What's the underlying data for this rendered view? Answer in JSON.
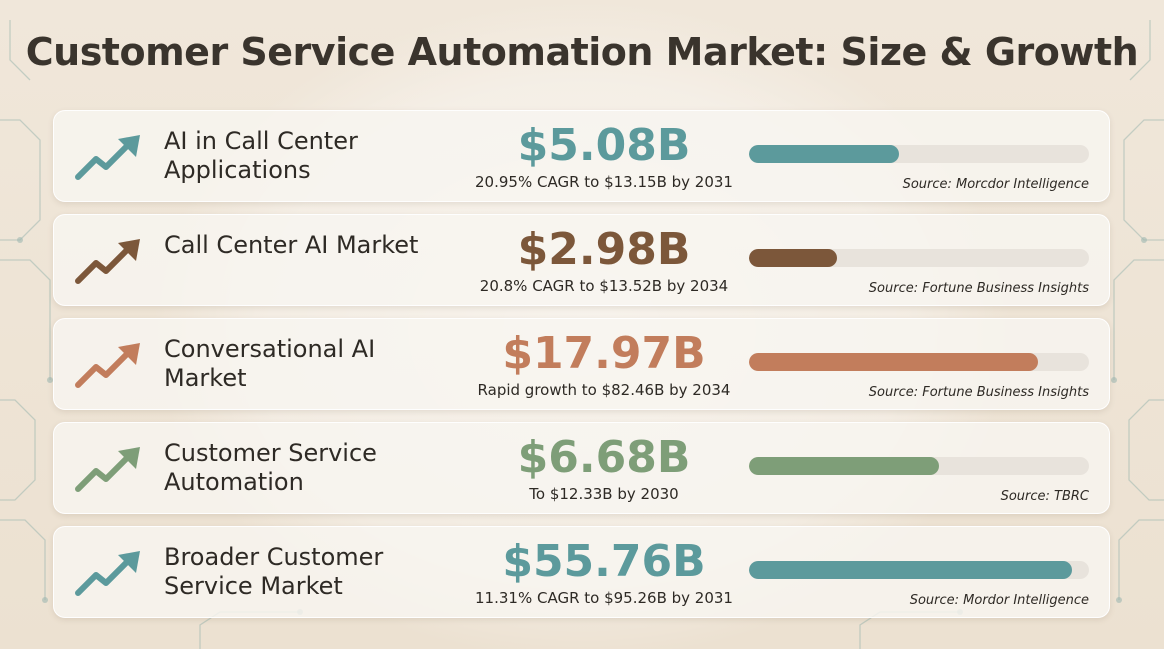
{
  "title": "Customer Service Automation Market: Size & Growth",
  "chart_data": {
    "type": "bar",
    "categories": [
      "AI in Call Center Applications",
      "Call Center AI Market",
      "Conversational AI Market",
      "Customer Service Automation",
      "Broader Customer Service Market"
    ],
    "bar_fill_fraction": [
      0.44,
      0.26,
      0.85,
      0.56,
      0.95
    ],
    "rows": [
      {
        "label": "AI in Call Center Applications",
        "value": "$5.08B",
        "sub": "20.95% CAGR to $13.15B by 2031",
        "source": "Source: Morcdor Intelligence",
        "color": "#5c9a9c",
        "fill": 0.44,
        "icon": "trend-up-arrow-icon"
      },
      {
        "label": "Call Center AI Market",
        "value": "$2.98B",
        "sub": "20.8% CAGR to $13.52B by 2034",
        "source": "Source: Fortune Business Insights",
        "color": "#7c573a",
        "fill": 0.26,
        "icon": "trend-up-arrow-icon"
      },
      {
        "label": "Conversational AI Market",
        "value": "$17.97B",
        "sub": "Rapid growth to $82.46B by 2034",
        "source": "Source: Fortune Business Insights",
        "color": "#c27d5c",
        "fill": 0.85,
        "icon": "trend-up-arrow-icon"
      },
      {
        "label": "Customer Service Automation",
        "value": "$6.68B",
        "sub": "To $12.33B by 2030",
        "source": "Source: TBRC",
        "color": "#7e9e78",
        "fill": 0.56,
        "icon": "trend-up-arrow-icon"
      },
      {
        "label": "Broader Customer Service Market",
        "value": "$55.76B",
        "sub": "11.31% CAGR to $95.26B by 2031",
        "source": "Source: Mordor Intelligence",
        "color": "#5c9a9c",
        "fill": 0.95,
        "icon": "trend-up-arrow-icon"
      }
    ]
  }
}
